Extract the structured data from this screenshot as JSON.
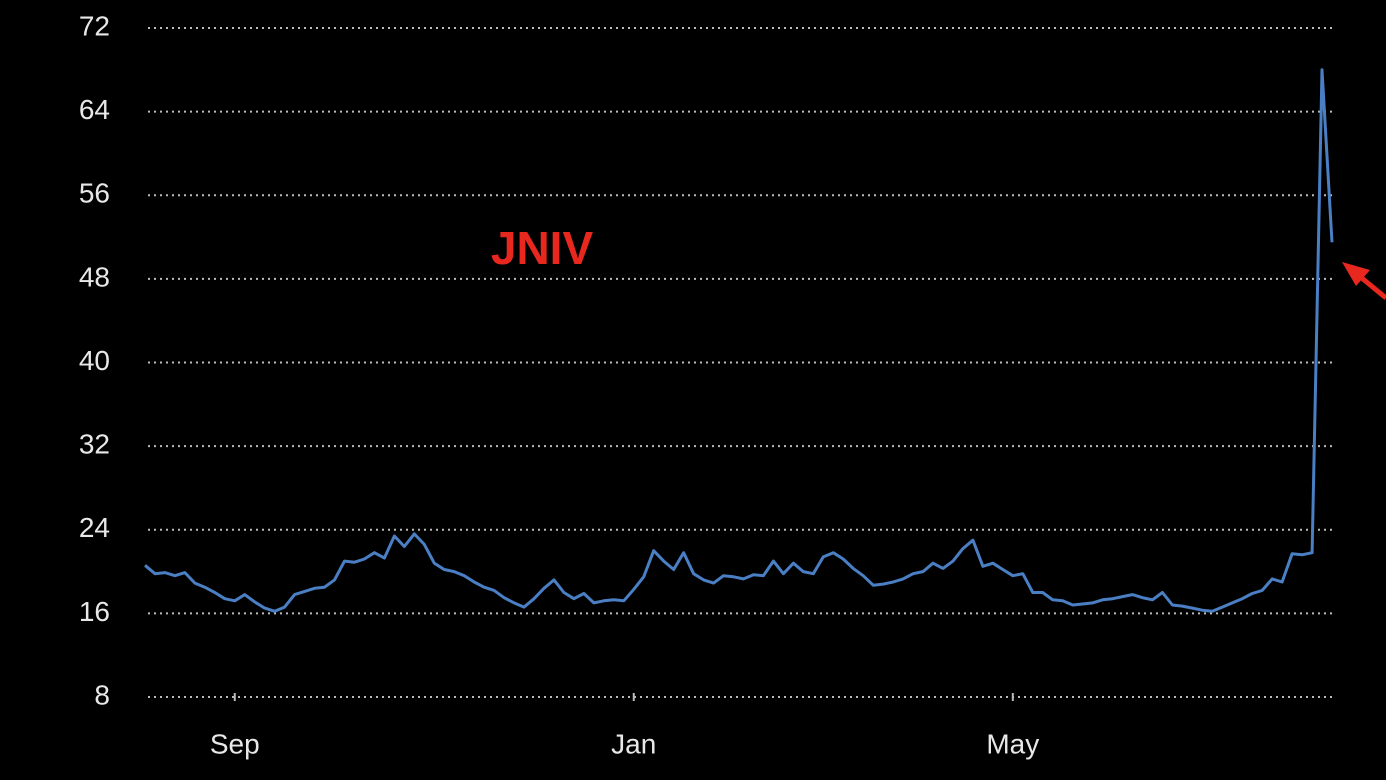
{
  "chart_data": {
    "type": "line",
    "annotation": "JNIV",
    "categories": [
      null,
      null,
      null,
      null,
      null,
      null,
      null,
      null,
      null,
      "Sep",
      null,
      null,
      null,
      null,
      null,
      null,
      null,
      null,
      null,
      null,
      null,
      null,
      null,
      null,
      null,
      null,
      null,
      null,
      null,
      null,
      null,
      null,
      null,
      null,
      null,
      null,
      null,
      null,
      null,
      null,
      null,
      null,
      null,
      null,
      null,
      null,
      null,
      null,
      null,
      "Jan",
      null,
      null,
      null,
      null,
      null,
      null,
      null,
      null,
      null,
      null,
      null,
      null,
      null,
      null,
      null,
      null,
      null,
      null,
      null,
      null,
      null,
      null,
      null,
      null,
      null,
      null,
      null,
      null,
      null,
      null,
      null,
      null,
      null,
      null,
      null,
      null,
      null,
      "May",
      null,
      null,
      null,
      null,
      null,
      null,
      null,
      null,
      null,
      null,
      null,
      null,
      null,
      null,
      null,
      null,
      null,
      null,
      null,
      null,
      null,
      null,
      null,
      null,
      null,
      null,
      null,
      null,
      null,
      null,
      null,
      null
    ],
    "series": [
      {
        "color": "#4a7fc4",
        "values": [
          20.6,
          19.8,
          19.9,
          19.6,
          19.9,
          18.9,
          18.5,
          18.0,
          17.4,
          17.2,
          17.8,
          17.1,
          16.5,
          16.2,
          16.6,
          17.8,
          18.1,
          18.4,
          18.5,
          19.2,
          21.0,
          20.9,
          21.2,
          21.8,
          21.3,
          23.4,
          22.4,
          23.6,
          22.6,
          20.8,
          20.2,
          20.0,
          19.6,
          19.0,
          18.5,
          18.2,
          17.5,
          17.0,
          16.6,
          17.4,
          18.4,
          19.2,
          18.0,
          17.4,
          17.9,
          17.0,
          17.2,
          17.3,
          17.2,
          18.3,
          19.5,
          22.0,
          21.0,
          20.2,
          21.8,
          19.8,
          19.2,
          18.9,
          19.6,
          19.5,
          19.3,
          19.7,
          19.6,
          21.0,
          19.8,
          20.8,
          20.0,
          19.8,
          21.4,
          21.8,
          21.2,
          20.3,
          19.6,
          18.7,
          18.8,
          19.0,
          19.3,
          19.8,
          20.0,
          20.8,
          20.3,
          21.0,
          22.2,
          23.0,
          20.5,
          20.8,
          20.2,
          19.6,
          19.8,
          18.0,
          18.0,
          17.3,
          17.2,
          16.8,
          16.9,
          17.0,
          17.3,
          17.4,
          17.6,
          17.8,
          17.5,
          17.3,
          18.0,
          16.8,
          16.7,
          16.5,
          16.3,
          16.2,
          16.6,
          17.0,
          17.4,
          17.9,
          18.2,
          19.3,
          19.0,
          21.7,
          21.6,
          21.8,
          68.0,
          51.5
        ]
      }
    ],
    "ylim": [
      8,
      72
    ],
    "yticks": [
      8,
      16,
      24,
      32,
      40,
      48,
      56,
      64,
      72
    ],
    "grid": true
  }
}
